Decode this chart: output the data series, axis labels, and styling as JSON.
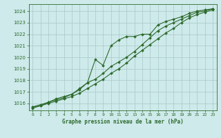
{
  "bg_color": "#ceeaea",
  "grid_color": "#a8c8c8",
  "line_color": "#2d6a2d",
  "xlabel": "Graphe pression niveau de la mer (hPa)",
  "xlabel_color": "#2d6a2d",
  "xtick_labels": [
    "0",
    "1",
    "2",
    "3",
    "4",
    "5",
    "6",
    "7",
    "8",
    "9",
    "10",
    "11",
    "12",
    "13",
    "14",
    "15",
    "16",
    "17",
    "18",
    "19",
    "20",
    "21",
    "22",
    "23"
  ],
  "ylim": [
    1015.4,
    1024.6
  ],
  "yticks": [
    1016,
    1017,
    1018,
    1019,
    1020,
    1021,
    1022,
    1023,
    1024
  ],
  "series1_x": [
    0,
    1,
    2,
    3,
    4,
    5,
    6,
    7,
    8,
    9,
    10,
    11,
    12,
    13,
    14,
    15,
    16,
    17,
    18,
    19,
    20,
    21,
    22,
    23
  ],
  "series1_y": [
    1015.7,
    1015.8,
    1016.1,
    1016.4,
    1016.6,
    1016.8,
    1017.3,
    1017.8,
    1019.8,
    1019.3,
    1021.0,
    1021.5,
    1021.8,
    1021.8,
    1022.0,
    1022.0,
    1022.8,
    1023.1,
    1023.3,
    1023.5,
    1023.8,
    1024.0,
    1024.1,
    1024.2
  ],
  "series2_x": [
    0,
    1,
    2,
    3,
    4,
    5,
    6,
    7,
    8,
    9,
    10,
    11,
    12,
    13,
    14,
    15,
    16,
    17,
    18,
    19,
    20,
    21,
    22,
    23
  ],
  "series2_y": [
    1015.7,
    1015.9,
    1016.1,
    1016.3,
    1016.5,
    1016.8,
    1017.2,
    1017.8,
    1018.1,
    1018.6,
    1019.2,
    1019.6,
    1020.0,
    1020.5,
    1021.1,
    1021.7,
    1022.3,
    1022.7,
    1023.0,
    1023.3,
    1023.6,
    1023.9,
    1024.0,
    1024.2
  ],
  "series3_x": [
    0,
    1,
    2,
    3,
    4,
    5,
    6,
    7,
    8,
    9,
    10,
    11,
    12,
    13,
    14,
    15,
    16,
    17,
    18,
    19,
    20,
    21,
    22,
    23
  ],
  "series3_y": [
    1015.6,
    1015.8,
    1016.0,
    1016.2,
    1016.4,
    1016.6,
    1016.9,
    1017.3,
    1017.7,
    1018.1,
    1018.6,
    1019.0,
    1019.5,
    1020.1,
    1020.6,
    1021.1,
    1021.6,
    1022.1,
    1022.5,
    1023.0,
    1023.4,
    1023.7,
    1023.9,
    1024.1
  ]
}
